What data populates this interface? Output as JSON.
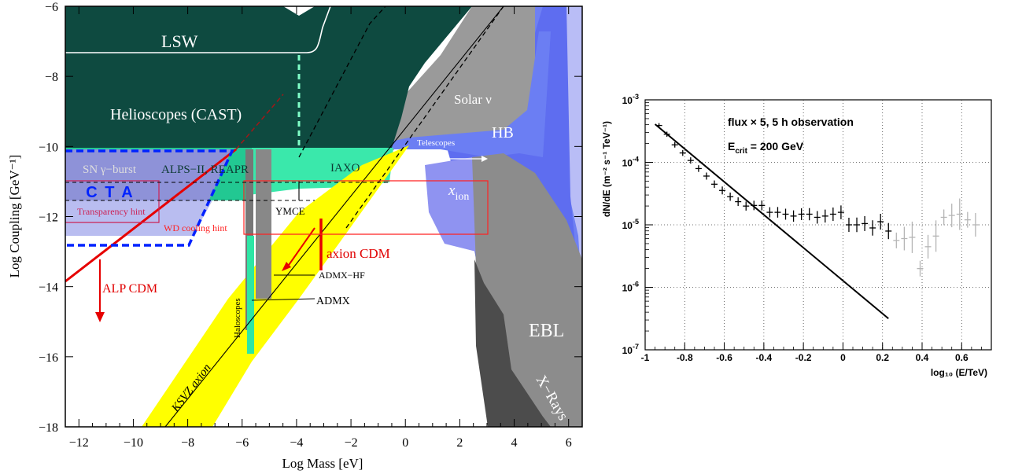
{
  "chart_data": [
    {
      "type": "area",
      "xlabel": "Log Mass [eV]",
      "ylabel": "Log Coupling [GeV⁻¹]",
      "xlim": [
        -12.5,
        6.5
      ],
      "ylim": [
        -18,
        -6
      ],
      "xticks": [
        "−12",
        "−10",
        "−8",
        "−6",
        "−4",
        "−2",
        "0",
        "2",
        "4",
        "6"
      ],
      "yticks": [
        "−6",
        "−8",
        "−10",
        "−12",
        "−14",
        "−16",
        "−18"
      ],
      "regions": [
        {
          "name": "LSW",
          "color": "#124a40"
        },
        {
          "name": "Helioscopes (CAST)",
          "color": "#0f4a40"
        },
        {
          "name": "SN γ−burst",
          "color": "#8a8fd6"
        },
        {
          "name": "ALPS−II, REAPR",
          "color": "#2fd9a0"
        },
        {
          "name": "IAXO",
          "color": "#3df0ad"
        },
        {
          "name": "Solar ν",
          "color": "#999999"
        },
        {
          "name": "HB",
          "color": "#6a7cf4"
        },
        {
          "name": "Telescopes",
          "color": "#6a7cf4"
        },
        {
          "name": "x_ion",
          "color": "#8c8ff0"
        },
        {
          "name": "EBL",
          "color": "#8a8a8a"
        },
        {
          "name": "X−Rays",
          "color": "#555555"
        },
        {
          "name": "Haloscopes",
          "color": "#777777"
        },
        {
          "name": "YMCE",
          "color": "#222222"
        },
        {
          "name": "ADMX−HF",
          "color": "#222222"
        },
        {
          "name": "ADMX",
          "color": "#222222"
        },
        {
          "name": "KSVZ axion",
          "color": "#ffff00"
        },
        {
          "name": "axion CDM",
          "color": "#ff0000"
        },
        {
          "name": "ALP CDM",
          "color": "#ff0000"
        },
        {
          "name": "CTA",
          "color": "#0000ff"
        },
        {
          "name": "Transparency hint",
          "color": "#cc2255"
        },
        {
          "name": "WD cooling hint",
          "color": "#ff2222"
        }
      ],
      "cta_label": "C T A",
      "x_ion_sub": "ion",
      "x_ion_base": "x"
    },
    {
      "type": "scatter",
      "xlabel": "log₁₀ (E/TeV)",
      "ylabel": "dN/dE  (m⁻² s⁻¹ TeV⁻¹)",
      "annotation_1": "flux × 5, 5 h observation",
      "annotation_2_base": "E",
      "annotation_2_sub": "crit",
      "annotation_2_rest": " = 200 GeV",
      "xlim": [
        -1,
        0.75
      ],
      "ylim_log10": [
        -7,
        -3
      ],
      "xticks": [
        "-1",
        "-0.8",
        "-0.6",
        "-0.4",
        "-0.2",
        "0",
        "0.2",
        "0.4",
        "0.6"
      ],
      "ytick_base": "10",
      "ytick_exps": [
        "-3",
        "-4",
        "-5",
        "-6",
        "-7"
      ],
      "grid": true,
      "model_line": {
        "x": [
          -0.95,
          0.23
        ],
        "log10_y": [
          -3.39,
          -6.5
        ]
      },
      "points": {
        "x": [
          -0.93,
          -0.89,
          -0.85,
          -0.81,
          -0.77,
          -0.73,
          -0.69,
          -0.65,
          -0.61,
          -0.57,
          -0.53,
          -0.49,
          -0.45,
          -0.41,
          -0.37,
          -0.33,
          -0.29,
          -0.25,
          -0.21,
          -0.17,
          -0.13,
          -0.09,
          -0.05,
          -0.01,
          0.03,
          0.07,
          0.11,
          0.15,
          0.19,
          0.23
        ],
        "log10_y": [
          -3.41,
          -3.55,
          -3.72,
          -3.85,
          -3.97,
          -4.1,
          -4.22,
          -4.35,
          -4.45,
          -4.55,
          -4.63,
          -4.7,
          -4.69,
          -4.69,
          -4.8,
          -4.8,
          -4.83,
          -4.86,
          -4.83,
          -4.83,
          -4.88,
          -4.86,
          -4.83,
          -4.8,
          -5.0,
          -5.0,
          -4.98,
          -5.05,
          -4.95,
          -5.1
        ]
      },
      "faint_points": {
        "x": [
          0.27,
          0.31,
          0.35,
          0.39,
          0.43,
          0.47,
          0.51,
          0.55,
          0.59,
          0.63,
          0.67
        ],
        "log10_y": [
          -5.25,
          -5.22,
          -5.2,
          -5.7,
          -5.35,
          -5.18,
          -4.88,
          -4.85,
          -4.83,
          -4.92,
          -5.0
        ]
      }
    }
  ]
}
